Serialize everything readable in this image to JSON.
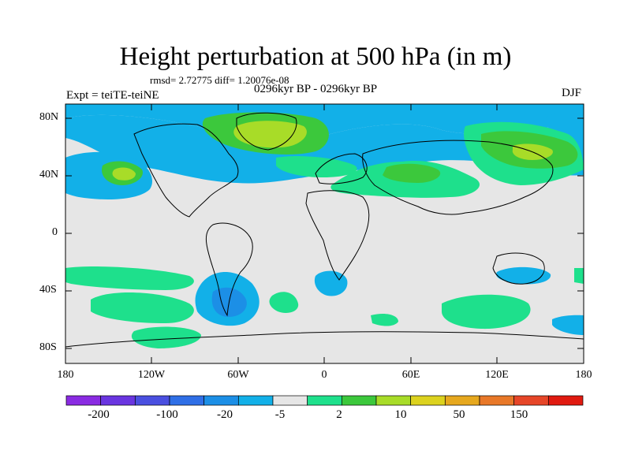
{
  "title": "Height perturbation at 500 hPa (in m)",
  "stats": "rmsd= 2.72775 diff= 1.20076e-08",
  "left_label": "Expt = teiTE-teiNE",
  "center_label": "0296kyr BP - 0296kyr BP",
  "right_label": "DJF",
  "lat_ticks": [
    "80N",
    "40N",
    "0",
    "40S",
    "80S"
  ],
  "lon_ticks": [
    "180",
    "120W",
    "60W",
    "0",
    "60E",
    "120E",
    "180"
  ],
  "colorbar": {
    "colors": [
      "#8a2be2",
      "#6a35e0",
      "#4a4fe0",
      "#2f6fe6",
      "#1c8fe6",
      "#12b0e8",
      "#e6e6e6",
      "#1ee08c",
      "#3cc83c",
      "#a8dc28",
      "#dcd21e",
      "#e6a81e",
      "#e87828",
      "#e64628",
      "#e01a10"
    ],
    "labels": [
      "-200",
      "-100",
      "-20",
      "-5",
      "2",
      "10",
      "50",
      "150"
    ]
  },
  "colors": {
    "land_bg": "#e6e6e6",
    "frame": "#000000"
  }
}
